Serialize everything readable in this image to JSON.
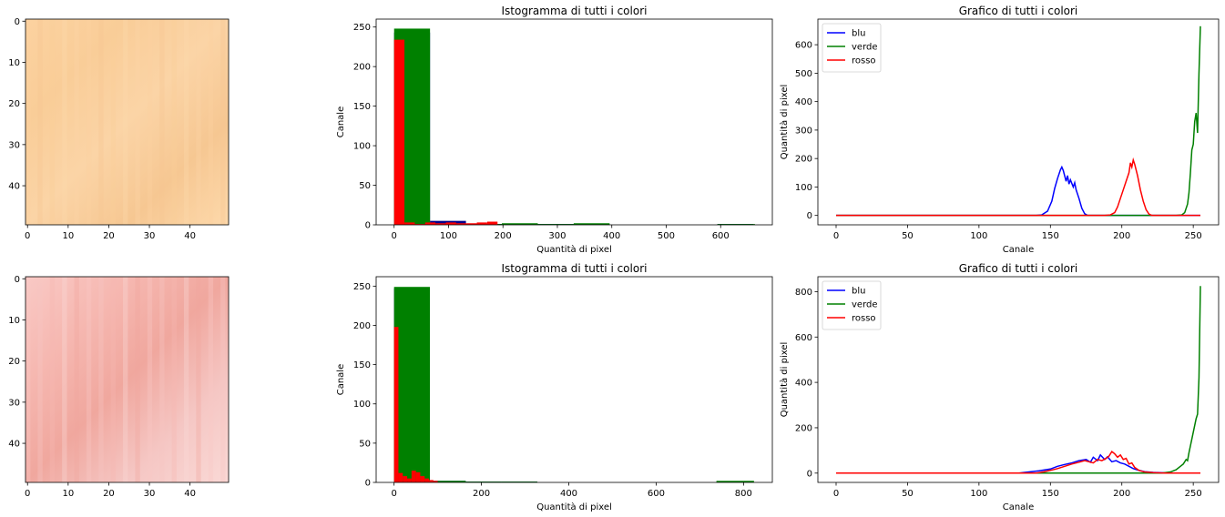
{
  "chart_data": [
    {
      "type": "image",
      "xticks": [
        "0",
        "10",
        "20",
        "30",
        "40"
      ],
      "yticks": [
        "0",
        "10",
        "20",
        "30",
        "40"
      ],
      "xlim": [
        -0.5,
        49.5
      ],
      "ylim": [
        49.5,
        -0.5
      ],
      "colors": [
        "#fcd2a0",
        "#f9cd98",
        "#fbd4a6",
        "#f6c792",
        "#fdd9ab"
      ]
    },
    {
      "type": "bar",
      "title": "Istogramma di tutti i colori",
      "xlabel": "Quantità di pixel",
      "ylabel": "Canale",
      "xticks": [
        "0",
        "100",
        "200",
        "300",
        "400",
        "500",
        "600"
      ],
      "yticks": [
        "0",
        "50",
        "100",
        "150",
        "200",
        "250"
      ],
      "xlim": [
        -33,
        695
      ],
      "ylim": [
        0,
        260
      ],
      "series": [
        {
          "name": "blu",
          "color": "#00008b",
          "bins": [
            [
              0,
              66,
              243
            ],
            [
              66,
              132,
              5
            ],
            [
              132,
              198,
              1
            ],
            [
              198,
              264,
              1
            ],
            [
              264,
              330,
              1
            ],
            [
              330,
              396,
              1
            ],
            [
              396,
              462,
              0
            ],
            [
              462,
              528,
              0
            ],
            [
              528,
              594,
              0
            ],
            [
              594,
              660,
              1
            ]
          ]
        },
        {
          "name": "verde",
          "color": "#008000",
          "bins": [
            [
              0,
              66,
              248
            ],
            [
              66,
              132,
              1
            ],
            [
              132,
              198,
              1
            ],
            [
              198,
              264,
              2
            ],
            [
              264,
              330,
              1
            ],
            [
              330,
              396,
              2
            ],
            [
              396,
              462,
              0
            ],
            [
              462,
              528,
              0
            ],
            [
              528,
              594,
              0
            ],
            [
              594,
              663,
              1
            ]
          ]
        },
        {
          "name": "rosso",
          "color": "#ff0000",
          "bins": [
            [
              0,
              19,
              234
            ],
            [
              19,
              38,
              3
            ],
            [
              38,
              57,
              1
            ],
            [
              57,
              76,
              3
            ],
            [
              76,
              95,
              2
            ],
            [
              95,
              114,
              3
            ],
            [
              114,
              133,
              2
            ],
            [
              133,
              152,
              2
            ],
            [
              152,
              171,
              3
            ],
            [
              171,
              190,
              4
            ]
          ]
        }
      ]
    },
    {
      "type": "line",
      "title": "Grafico di tutti i colori",
      "xlabel": "Canale",
      "ylabel": "Quantità di pixel",
      "xticks": [
        "0",
        "50",
        "100",
        "150",
        "200",
        "250"
      ],
      "yticks": [
        "0",
        "100",
        "200",
        "300",
        "400",
        "500",
        "600"
      ],
      "xlim": [
        -12.75,
        267.75
      ],
      "ylim": [
        -33,
        690
      ],
      "legend": "top-left",
      "series": [
        {
          "name": "blu",
          "color": "#0000ff",
          "points": [
            [
              0,
              0
            ],
            [
              140,
              0
            ],
            [
              144,
              2
            ],
            [
              148,
              15
            ],
            [
              151,
              50
            ],
            [
              153,
              95
            ],
            [
              155,
              130
            ],
            [
              157,
              160
            ],
            [
              158,
              170
            ],
            [
              159,
              158
            ],
            [
              161,
              120
            ],
            [
              162,
              140
            ],
            [
              163,
              110
            ],
            [
              164,
              125
            ],
            [
              166,
              100
            ],
            [
              167,
              115
            ],
            [
              168,
              90
            ],
            [
              170,
              60
            ],
            [
              172,
              25
            ],
            [
              174,
              6
            ],
            [
              176,
              0
            ],
            [
              255,
              0
            ]
          ]
        },
        {
          "name": "verde",
          "color": "#008000",
          "points": [
            [
              0,
              0
            ],
            [
              238,
              0
            ],
            [
              242,
              2
            ],
            [
              244,
              10
            ],
            [
              246,
              40
            ],
            [
              247,
              80
            ],
            [
              248,
              150
            ],
            [
              249,
              230
            ],
            [
              250,
              250
            ],
            [
              251,
              330
            ],
            [
              252,
              360
            ],
            [
              253,
              290
            ],
            [
              254,
              500
            ],
            [
              255,
              665
            ]
          ]
        },
        {
          "name": "rosso",
          "color": "#ff0000",
          "points": [
            [
              0,
              0
            ],
            [
              188,
              0
            ],
            [
              192,
              2
            ],
            [
              195,
              10
            ],
            [
              197,
              30
            ],
            [
              199,
              60
            ],
            [
              201,
              90
            ],
            [
              203,
              120
            ],
            [
              205,
              150
            ],
            [
              206,
              185
            ],
            [
              207,
              170
            ],
            [
              208,
              195
            ],
            [
              209,
              180
            ],
            [
              211,
              140
            ],
            [
              213,
              90
            ],
            [
              215,
              50
            ],
            [
              217,
              20
            ],
            [
              219,
              5
            ],
            [
              221,
              0
            ],
            [
              255,
              0
            ]
          ]
        }
      ]
    },
    {
      "type": "image",
      "xticks": [
        "0",
        "10",
        "20",
        "30",
        "40"
      ],
      "yticks": [
        "0",
        "10",
        "20",
        "30",
        "40"
      ],
      "xlim": [
        -0.5,
        49.5
      ],
      "ylim": [
        49.5,
        -0.5
      ],
      "colors": [
        "#f9c9c5",
        "#f6b8b1",
        "#f0a79e",
        "#f5c7c4",
        "#fad9d6"
      ]
    },
    {
      "type": "bar",
      "title": "Istogramma di tutti i colori",
      "xlabel": "Quantità di pixel",
      "ylabel": "Canale",
      "xticks": [
        "0",
        "200",
        "400",
        "600",
        "800"
      ],
      "yticks": [
        "0",
        "50",
        "100",
        "150",
        "200",
        "250"
      ],
      "xlim": [
        -41,
        866
      ],
      "ylim": [
        0,
        262
      ],
      "series": [
        {
          "name": "blu",
          "color": "#00008b",
          "bins": [
            [
              0,
              82,
              247
            ],
            [
              82,
              164,
              2
            ],
            [
              164,
              246,
              1
            ],
            [
              246,
              328,
              1
            ],
            [
              328,
              410,
              0
            ],
            [
              410,
              492,
              0
            ],
            [
              492,
              574,
              0
            ],
            [
              574,
              656,
              0
            ],
            [
              656,
              738,
              0
            ],
            [
              738,
              820,
              1
            ]
          ]
        },
        {
          "name": "verde",
          "color": "#008000",
          "bins": [
            [
              0,
              82,
              249
            ],
            [
              82,
              164,
              2
            ],
            [
              164,
              246,
              1
            ],
            [
              246,
              328,
              1
            ],
            [
              328,
              410,
              0
            ],
            [
              410,
              492,
              0
            ],
            [
              492,
              574,
              0
            ],
            [
              574,
              656,
              0
            ],
            [
              656,
              738,
              0
            ],
            [
              738,
              824,
              2
            ]
          ]
        },
        {
          "name": "rosso",
          "color": "#ff0000",
          "bins": [
            [
              0,
              10,
              198
            ],
            [
              10,
              20,
              12
            ],
            [
              20,
              30,
              8
            ],
            [
              30,
              40,
              5
            ],
            [
              40,
              50,
              15
            ],
            [
              50,
              60,
              13
            ],
            [
              60,
              70,
              8
            ],
            [
              70,
              80,
              5
            ],
            [
              80,
              90,
              3
            ],
            [
              90,
              100,
              2
            ]
          ]
        }
      ]
    },
    {
      "type": "line",
      "title": "Grafico di tutti i colori",
      "xlabel": "Canale",
      "ylabel": "Quantità di pixel",
      "xticks": [
        "0",
        "50",
        "100",
        "150",
        "200",
        "250"
      ],
      "yticks": [
        "0",
        "200",
        "400",
        "600",
        "800"
      ],
      "xlim": [
        -12.75,
        267.75
      ],
      "ylim": [
        -41,
        866
      ],
      "legend": "top-left",
      "series": [
        {
          "name": "blu",
          "color": "#0000ff",
          "points": [
            [
              0,
              0
            ],
            [
              128,
              0
            ],
            [
              135,
              5
            ],
            [
              142,
              10
            ],
            [
              150,
              18
            ],
            [
              155,
              30
            ],
            [
              160,
              38
            ],
            [
              165,
              45
            ],
            [
              170,
              55
            ],
            [
              175,
              60
            ],
            [
              178,
              48
            ],
            [
              180,
              70
            ],
            [
              183,
              55
            ],
            [
              185,
              80
            ],
            [
              188,
              60
            ],
            [
              190,
              72
            ],
            [
              193,
              50
            ],
            [
              196,
              55
            ],
            [
              199,
              45
            ],
            [
              202,
              40
            ],
            [
              205,
              30
            ],
            [
              208,
              20
            ],
            [
              212,
              12
            ],
            [
              216,
              6
            ],
            [
              222,
              3
            ],
            [
              230,
              1
            ],
            [
              236,
              0
            ],
            [
              255,
              0
            ]
          ]
        },
        {
          "name": "verde",
          "color": "#008000",
          "points": [
            [
              0,
              0
            ],
            [
              228,
              0
            ],
            [
              234,
              5
            ],
            [
              238,
              15
            ],
            [
              241,
              30
            ],
            [
              243,
              40
            ],
            [
              245,
              60
            ],
            [
              246,
              55
            ],
            [
              247,
              90
            ],
            [
              248,
              120
            ],
            [
              249,
              150
            ],
            [
              250,
              180
            ],
            [
              252,
              240
            ],
            [
              253,
              260
            ],
            [
              254,
              420
            ],
            [
              255,
              825
            ]
          ]
        },
        {
          "name": "rosso",
          "color": "#ff0000",
          "points": [
            [
              0,
              0
            ],
            [
              140,
              0
            ],
            [
              145,
              5
            ],
            [
              150,
              12
            ],
            [
              155,
              20
            ],
            [
              160,
              30
            ],
            [
              165,
              40
            ],
            [
              170,
              48
            ],
            [
              174,
              55
            ],
            [
              177,
              50
            ],
            [
              180,
              45
            ],
            [
              183,
              60
            ],
            [
              186,
              55
            ],
            [
              189,
              65
            ],
            [
              191,
              75
            ],
            [
              193,
              95
            ],
            [
              195,
              85
            ],
            [
              197,
              70
            ],
            [
              199,
              80
            ],
            [
              201,
              60
            ],
            [
              203,
              65
            ],
            [
              205,
              40
            ],
            [
              207,
              45
            ],
            [
              209,
              25
            ],
            [
              212,
              12
            ],
            [
              216,
              5
            ],
            [
              222,
              2
            ],
            [
              230,
              0
            ],
            [
              255,
              0
            ]
          ]
        }
      ]
    }
  ]
}
